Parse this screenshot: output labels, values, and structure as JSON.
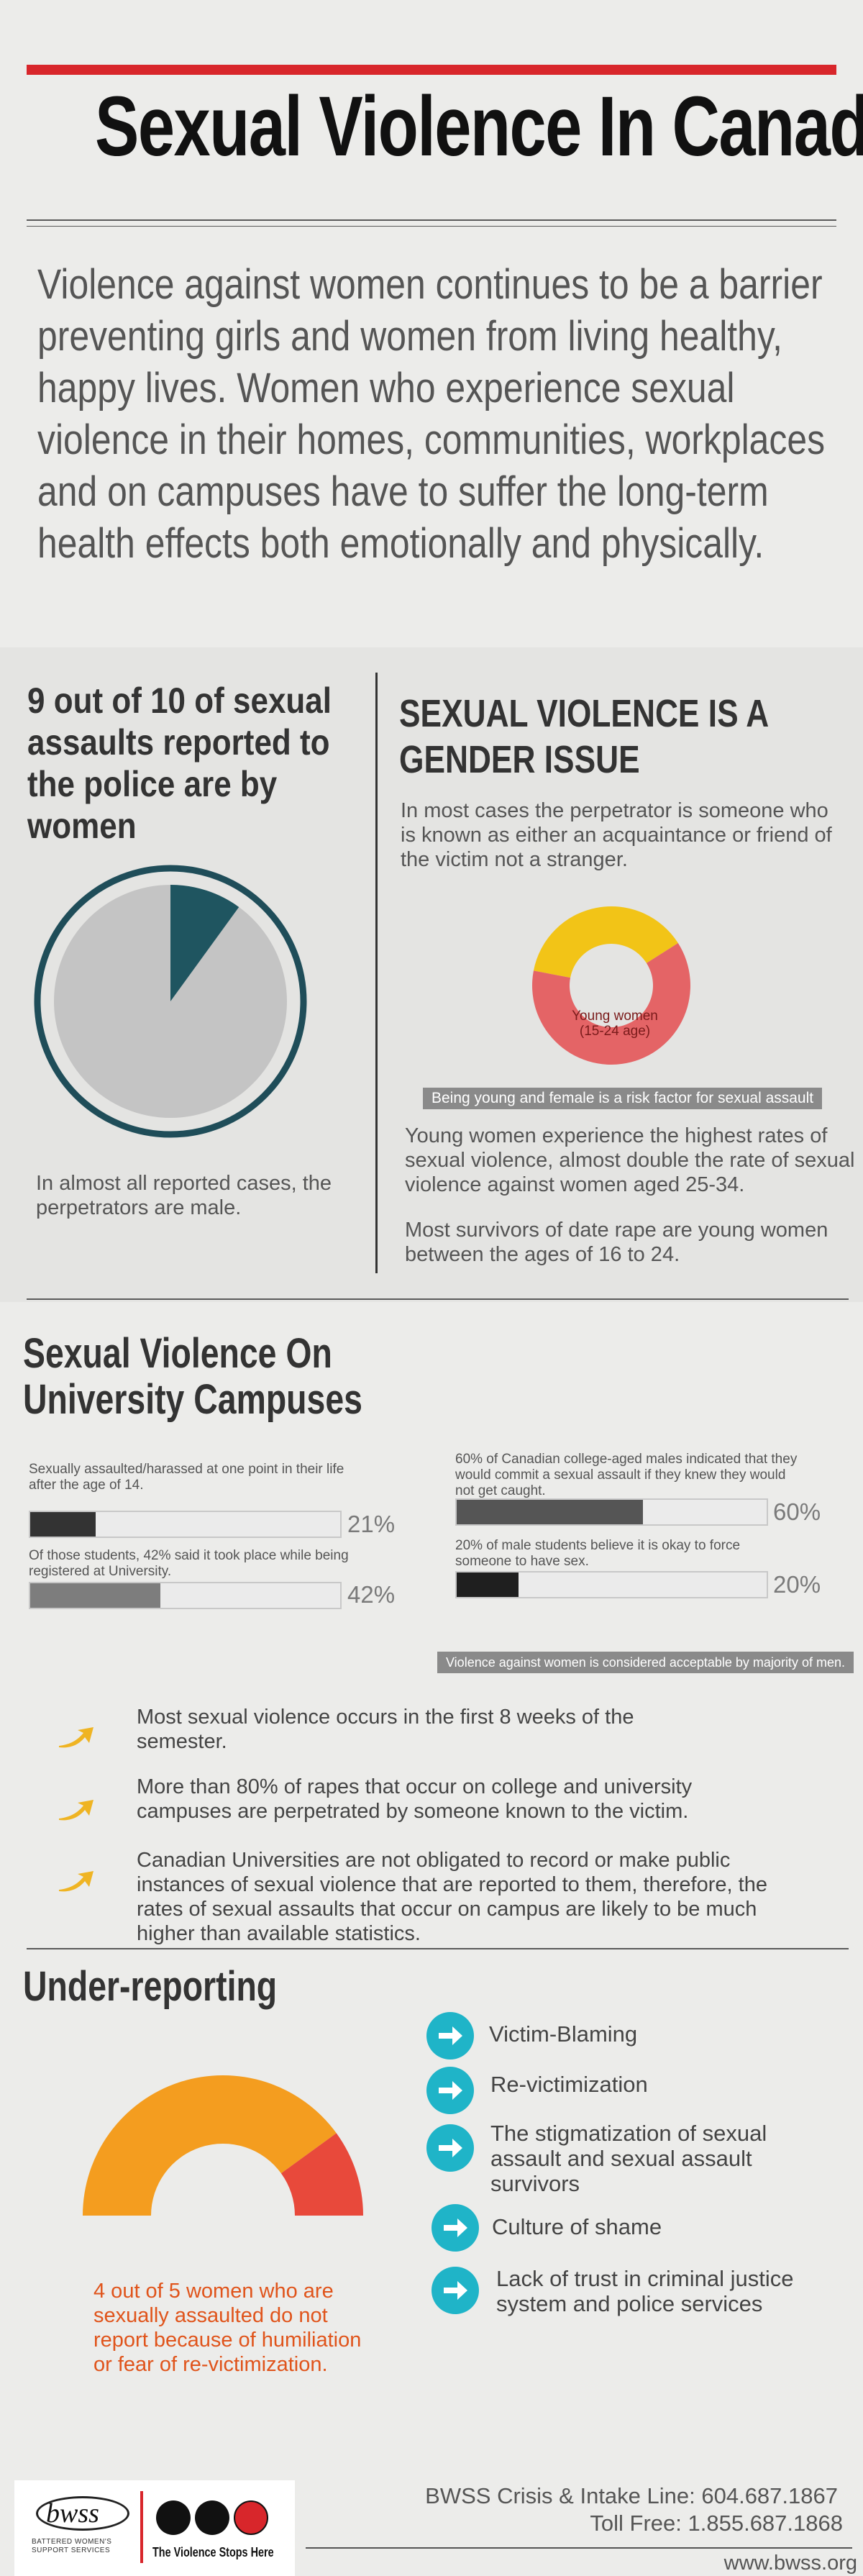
{
  "header": {
    "title": "Sexual Violence In Canada",
    "intro": "Violence against women continues to be a barrier preventing girls and women from living healthy, happy lives. Women who experience sexual violence in their homes, communities, workplaces and on campuses have to suffer the long-term health effects both emotionally and physically."
  },
  "stats": {
    "left_heading": "9 out of 10 of sexual assaults reported to the police are by women",
    "pie_share": 0.1,
    "left_footer": "In almost all reported cases, the perpetrators are male.",
    "right_heading": "SEXUAL VIOLENCE IS A GENDER ISSUE",
    "right_intro": "In most cases the perpetrator is someone who is known as either an acquaintance or friend of the victim not a stranger.",
    "donut_label": "Young women (15-24 age)",
    "donut_share": 0.62,
    "banner": "Being young and female is a risk factor for sexual assault",
    "para1": "Young women experience the highest rates of sexual violence, almost double the rate of sexual violence against women aged 25-34.",
    "para2": "Most survivors of date rape are young women between the ages of 16 to 24.",
    "colors": {
      "pie_slice": "#1f5560",
      "pie_base": "#c4c4c4",
      "donut_yellow": "#f2c417",
      "donut_red": "#e46466"
    }
  },
  "campus": {
    "heading": "Sexual Violence On University Campuses",
    "bars": [
      {
        "label": "Sexually assaulted/harassed at one point in their life after the age of 14.",
        "value": 21,
        "pct": "21%",
        "color": "#333333"
      },
      {
        "label": "Of those students, 42% said it took place while being registered at University.",
        "value": 42,
        "pct": "42%",
        "color": "#7d7d7d"
      },
      {
        "label": "60% of Canadian college-aged males indicated that they would commit a sexual assault if they knew they would not get caught.",
        "value": 60,
        "pct": "60%",
        "color": "#555555"
      },
      {
        "label": "20% of male students believe it is okay to force someone to have sex.",
        "value": 20,
        "pct": "20%",
        "color": "#1f1f1f"
      }
    ],
    "banner": "Violence against women is considered acceptable by majority of men.",
    "bullets": [
      "Most sexual violence occurs in the first 8 weeks of the semester.",
      "More than 80% of rapes that occur on college and university campuses are perpetrated by someone known to the victim.",
      "Canadian Universities are not obligated to record or make public instances of sexual violence that are reported to them, therefore, the rates of sexual assaults that occur on campus are likely to be much higher than available statistics."
    ]
  },
  "underreporting": {
    "heading": "Under-reporting",
    "gauge_share": 0.8,
    "caption": "4 out of 5 women who are sexually assaulted do not report because of humiliation or fear of re-victimization.",
    "items": [
      "Victim-Blaming",
      "Re-victimization",
      "The stigmatization of sexual assault and sexual assault survivors",
      "Culture of shame",
      "Lack of trust in criminal justice system and police services"
    ],
    "colors": {
      "orange": "#f49d1f",
      "red": "#e8493b"
    }
  },
  "footer": {
    "logo_text": "bwss",
    "logo_sub": "BATTERED WOMEN'S SUPPORT SERVICES",
    "tagline": "The Violence Stops Here",
    "crisis_line": "BWSS Crisis & Intake Line: 604.687.1867",
    "toll_free": "Toll Free: 1.855.687.1868",
    "website": "www.bwss.org"
  }
}
